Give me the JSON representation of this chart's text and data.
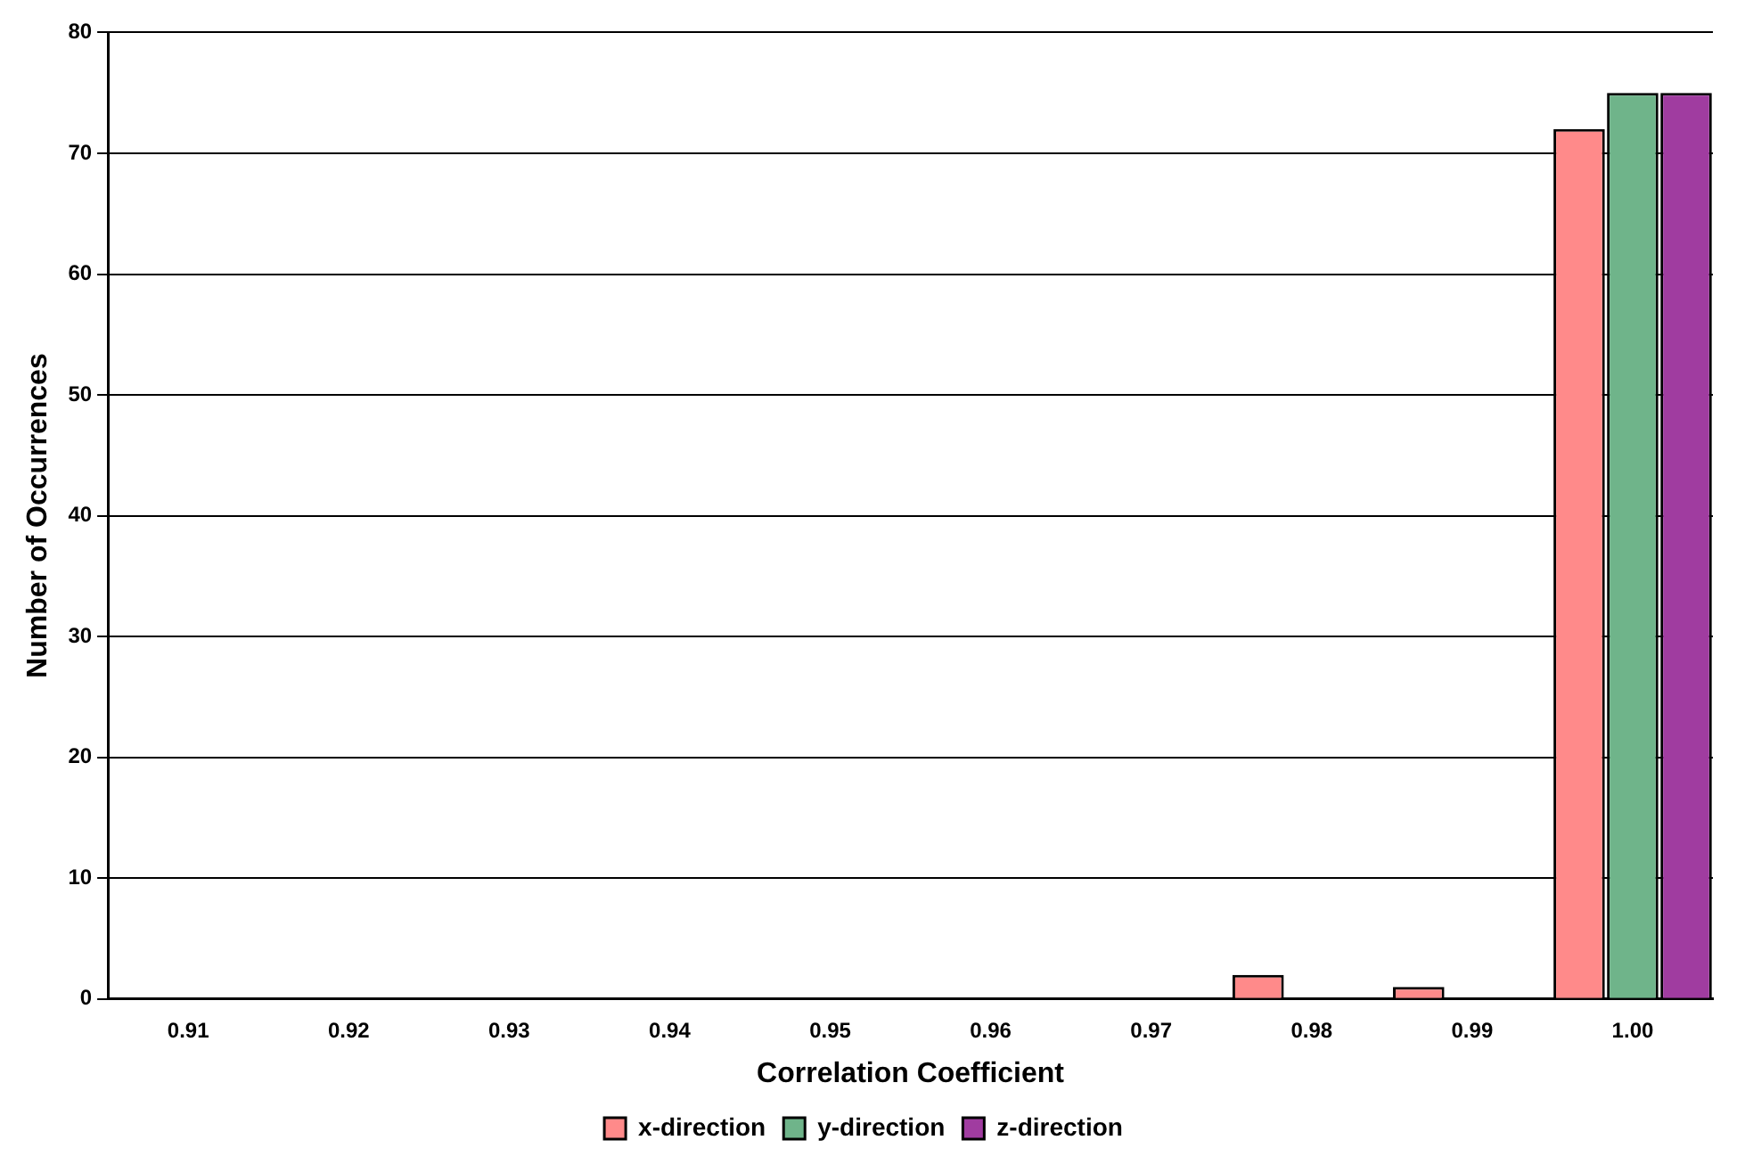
{
  "chart_data": {
    "type": "bar",
    "xlabel": "Correlation Coefficient",
    "ylabel": "Number of Occurrences",
    "categories": [
      "0.91",
      "0.92",
      "0.93",
      "0.94",
      "0.95",
      "0.96",
      "0.97",
      "0.98",
      "0.99",
      "1.00"
    ],
    "series": [
      {
        "name": "x-direction",
        "color": "#ff8a8a",
        "values": [
          0,
          0,
          0,
          0,
          0,
          0,
          0,
          2,
          1,
          72
        ]
      },
      {
        "name": "y-direction",
        "color": "#6fb48a",
        "values": [
          0,
          0,
          0,
          0,
          0,
          0,
          0,
          0,
          0,
          75
        ]
      },
      {
        "name": "z-direction",
        "color": "#a03ca0",
        "values": [
          0,
          0,
          0,
          0,
          0,
          0,
          0,
          0,
          0,
          75
        ]
      }
    ],
    "ylim": [
      0,
      80
    ],
    "yticks": [
      0,
      10,
      20,
      30,
      40,
      50,
      60,
      70,
      80
    ],
    "grid": "y",
    "legend": "bottom"
  }
}
